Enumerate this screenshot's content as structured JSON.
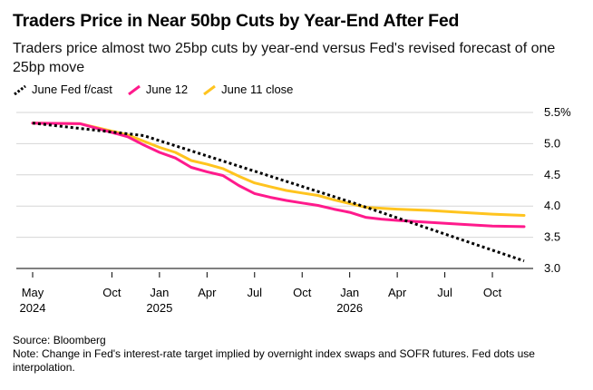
{
  "chart_data": {
    "type": "line",
    "title": "Traders Price in Near 50bp Cuts by Year-End After Fed",
    "subtitle": "Traders price almost two 25bp cuts by year-end versus Fed's revised forecast of one 25bp move",
    "source": "Source: Bloomberg",
    "note": "Note: Change in Fed's interest-rate target implied by overnight index swaps and SOFR futures. Fed dots use interpolation.",
    "ylim": [
      3.0,
      5.5
    ],
    "y_ticks": [
      {
        "value": 5.5,
        "label": "5.5%"
      },
      {
        "value": 5.0,
        "label": "5.0"
      },
      {
        "value": 4.5,
        "label": "4.5"
      },
      {
        "value": 4.0,
        "label": "4.0"
      },
      {
        "value": 3.5,
        "label": "3.5"
      },
      {
        "value": 3.0,
        "label": "3.0"
      }
    ],
    "x_range": [
      "2024-05",
      "2026-12"
    ],
    "x_ticks": [
      {
        "date": "2024-05",
        "label": "May",
        "sublabel": "2024"
      },
      {
        "date": "2024-10",
        "label": "Oct",
        "sublabel": ""
      },
      {
        "date": "2025-01",
        "label": "Jan",
        "sublabel": "2025"
      },
      {
        "date": "2025-04",
        "label": "Apr",
        "sublabel": ""
      },
      {
        "date": "2025-07",
        "label": "Jul",
        "sublabel": ""
      },
      {
        "date": "2025-10",
        "label": "Oct",
        "sublabel": ""
      },
      {
        "date": "2026-01",
        "label": "Jan",
        "sublabel": "2026"
      },
      {
        "date": "2026-04",
        "label": "Apr",
        "sublabel": ""
      },
      {
        "date": "2026-07",
        "label": "Jul",
        "sublabel": ""
      },
      {
        "date": "2026-10",
        "label": "Oct",
        "sublabel": ""
      }
    ],
    "grid": true,
    "legend_position": "top-left",
    "series": [
      {
        "name": "June Fed f/cast",
        "color": "#000000",
        "style": "dotted",
        "points": [
          [
            "2024-05",
            5.33
          ],
          [
            "2024-12",
            5.13
          ],
          [
            "2026-01",
            4.07
          ],
          [
            "2026-12",
            3.12
          ]
        ]
      },
      {
        "name": "June 12",
        "color": "#ff1a8c",
        "style": "solid",
        "points": [
          [
            "2024-05",
            5.33
          ],
          [
            "2024-08",
            5.32
          ],
          [
            "2024-09",
            5.25
          ],
          [
            "2024-10",
            5.18
          ],
          [
            "2024-11",
            5.11
          ],
          [
            "2024-12",
            4.98
          ],
          [
            "2025-01",
            4.86
          ],
          [
            "2025-02",
            4.77
          ],
          [
            "2025-03",
            4.62
          ],
          [
            "2025-04",
            4.55
          ],
          [
            "2025-05",
            4.49
          ],
          [
            "2025-06",
            4.33
          ],
          [
            "2025-07",
            4.2
          ],
          [
            "2025-08",
            4.14
          ],
          [
            "2025-09",
            4.09
          ],
          [
            "2025-10",
            4.05
          ],
          [
            "2025-11",
            4.01
          ],
          [
            "2025-12",
            3.95
          ],
          [
            "2026-01",
            3.9
          ],
          [
            "2026-02",
            3.82
          ],
          [
            "2026-03",
            3.79
          ],
          [
            "2026-04",
            3.77
          ],
          [
            "2026-06",
            3.74
          ],
          [
            "2026-08",
            3.71
          ],
          [
            "2026-10",
            3.68
          ],
          [
            "2026-12",
            3.67
          ]
        ]
      },
      {
        "name": "June 11 close",
        "color": "#ffc41f",
        "style": "solid",
        "points": [
          [
            "2024-05",
            5.33
          ],
          [
            "2024-08",
            5.32
          ],
          [
            "2024-09",
            5.26
          ],
          [
            "2024-10",
            5.2
          ],
          [
            "2024-11",
            5.14
          ],
          [
            "2024-12",
            5.04
          ],
          [
            "2025-01",
            4.94
          ],
          [
            "2025-02",
            4.86
          ],
          [
            "2025-03",
            4.73
          ],
          [
            "2025-04",
            4.67
          ],
          [
            "2025-05",
            4.6
          ],
          [
            "2025-06",
            4.48
          ],
          [
            "2025-07",
            4.37
          ],
          [
            "2025-08",
            4.31
          ],
          [
            "2025-09",
            4.25
          ],
          [
            "2025-10",
            4.21
          ],
          [
            "2025-11",
            4.17
          ],
          [
            "2025-12",
            4.1
          ],
          [
            "2026-01",
            4.04
          ],
          [
            "2026-02",
            3.98
          ],
          [
            "2026-04",
            3.95
          ],
          [
            "2026-06",
            3.93
          ],
          [
            "2026-08",
            3.9
          ],
          [
            "2026-10",
            3.87
          ],
          [
            "2026-12",
            3.85
          ]
        ]
      }
    ]
  }
}
